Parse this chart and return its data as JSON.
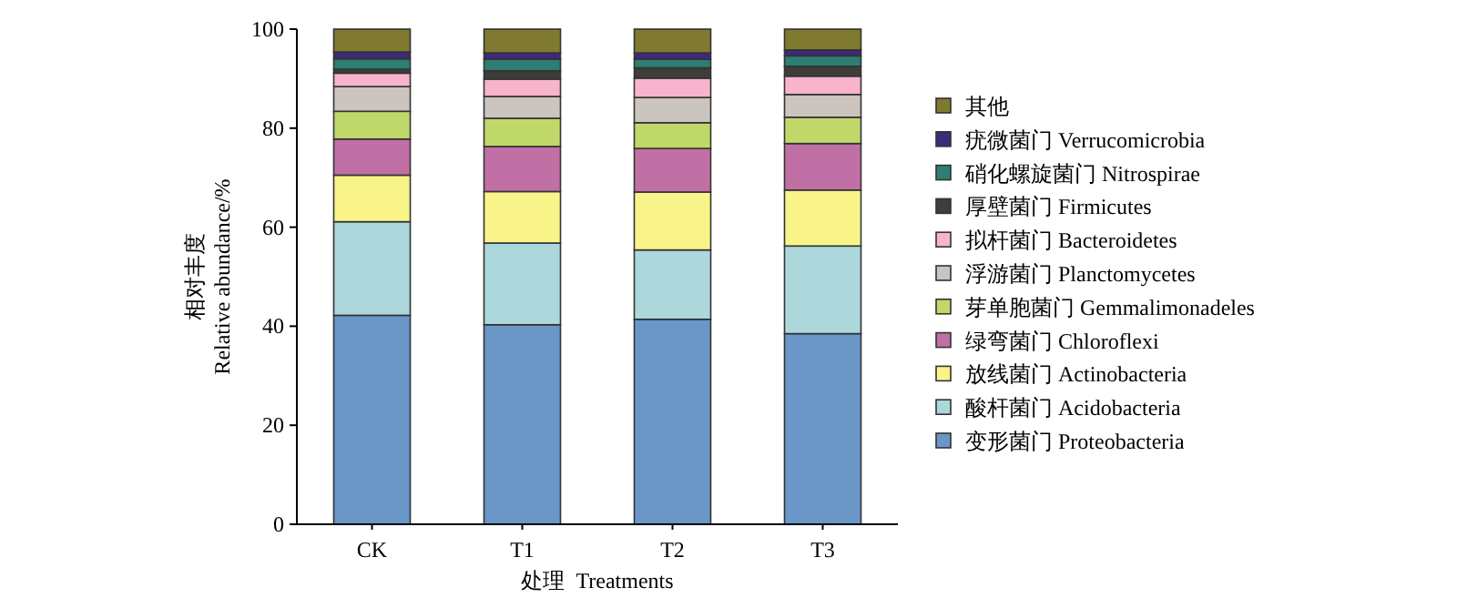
{
  "chart_data": {
    "type": "bar",
    "stacked": true,
    "xlabel": "处理  Treatments",
    "ylabel": "相对丰度\nRelative abundance/%",
    "categories": [
      "CK",
      "T1",
      "T2",
      "T3"
    ],
    "ylim": [
      0,
      100
    ],
    "yticks": [
      0,
      20,
      40,
      60,
      80,
      100
    ],
    "legend": "right",
    "grid": false,
    "series": [
      {
        "name": "变形菌门 Proteobacteria",
        "color": "#6a96c8",
        "values": [
          42.2,
          40.3,
          41.4,
          38.5
        ]
      },
      {
        "name": "酸杆菌门 Acidobacteria",
        "color": "#acd8dc",
        "values": [
          18.9,
          16.5,
          14.0,
          17.7
        ]
      },
      {
        "name": "放线菌门 Actinobacteria",
        "color": "#f8f48a",
        "values": [
          9.4,
          10.4,
          11.7,
          11.3
        ]
      },
      {
        "name": "绿弯菌门 Chloroflexi",
        "color": "#c070a4",
        "values": [
          7.3,
          9.1,
          8.8,
          9.4
        ]
      },
      {
        "name": "芽单胞菌门 Gemmalimonadeles",
        "color": "#c0d86a",
        "values": [
          5.6,
          5.7,
          5.2,
          5.3
        ]
      },
      {
        "name": "浮游菌门 Planctomycetes",
        "color": "#ccc4be",
        "values": [
          5.0,
          4.4,
          5.1,
          4.6
        ]
      },
      {
        "name": "拟杆菌门 Bacteroidetes",
        "color": "#f8b4cc",
        "values": [
          2.7,
          3.5,
          3.9,
          3.7
        ]
      },
      {
        "name": "厚壁菌门 Firmicutes",
        "color": "#3e3e38",
        "values": [
          0.8,
          1.7,
          2.1,
          2.0
        ]
      },
      {
        "name": "硝化螺旋菌门 Nitrospirae",
        "color": "#2e7e72",
        "values": [
          2.1,
          2.3,
          1.7,
          2.1
        ]
      },
      {
        "name": "疣微菌门 Verrucomicrobia",
        "color": "#3c2a7a",
        "values": [
          1.4,
          1.3,
          1.3,
          1.2
        ]
      },
      {
        "name": "其他",
        "color": "#807a30",
        "values": [
          4.6,
          4.8,
          4.8,
          4.2
        ]
      }
    ]
  }
}
